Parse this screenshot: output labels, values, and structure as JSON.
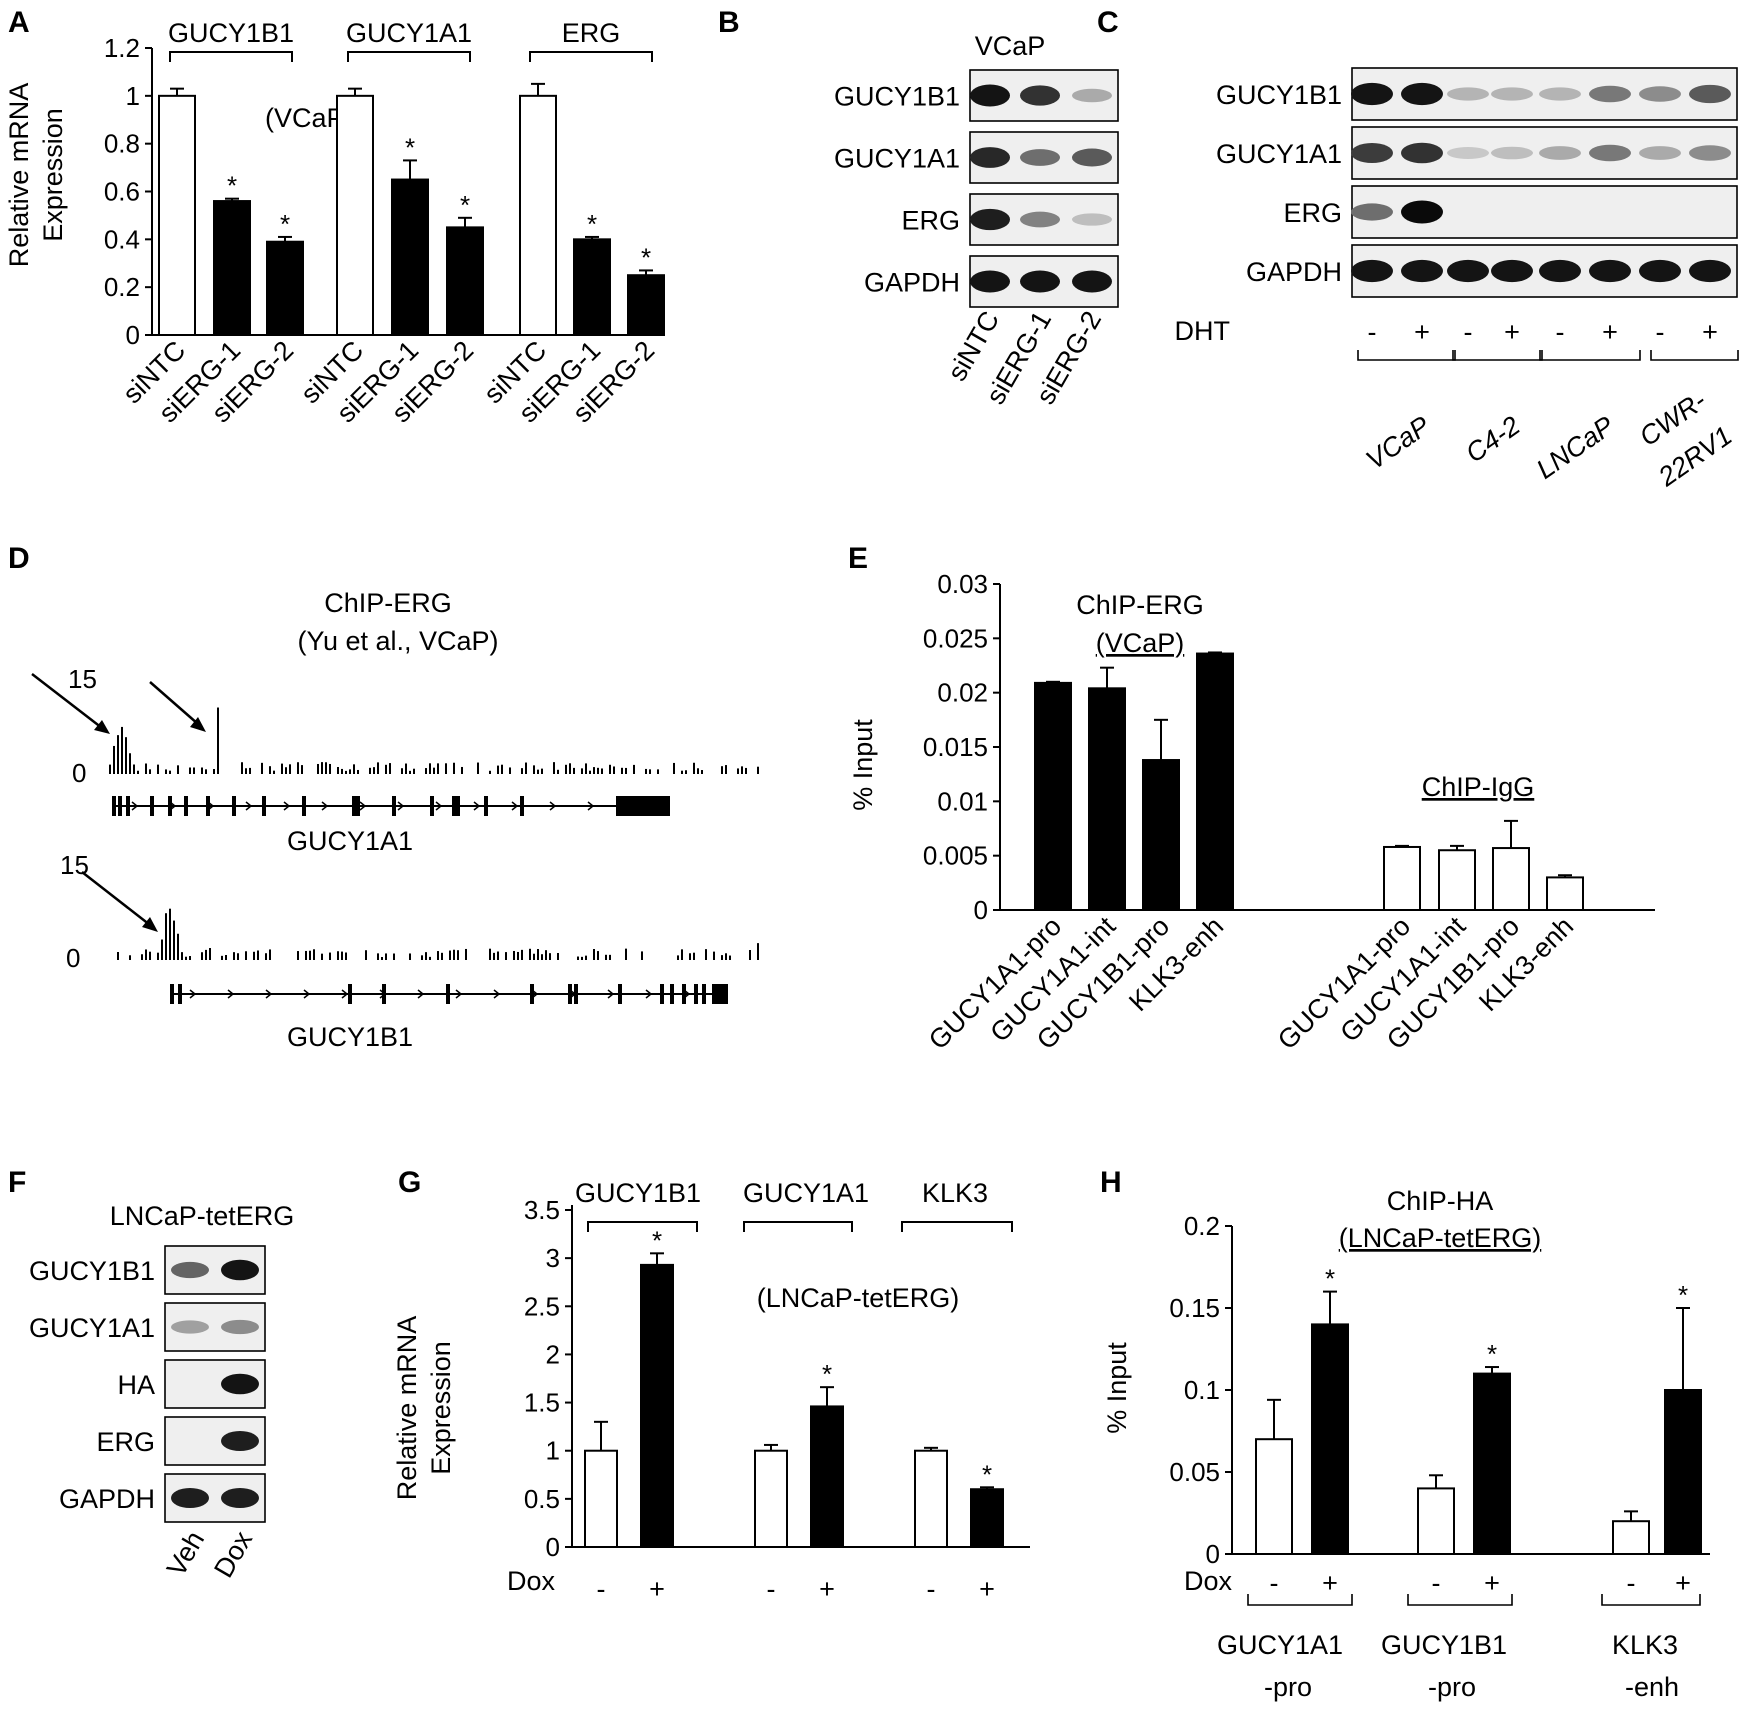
{
  "panels": {
    "A": {
      "letter": "A",
      "cell_note": "(VCaP)",
      "ylabel": [
        "Relative mRNA",
        "Expression"
      ],
      "yticks": [
        "0",
        "0.2",
        "0.4",
        "0.6",
        "0.8",
        "1",
        "1.2"
      ],
      "groups": [
        "GUCY1B1",
        "GUCY1A1",
        "ERG"
      ],
      "xlabels": [
        "siNTC",
        "siERG-1",
        "siERG-2"
      ]
    },
    "B": {
      "letter": "B",
      "cell": "VCaP",
      "rows": [
        "GUCY1B1",
        "GUCY1A1",
        "ERG",
        "GAPDH"
      ],
      "lanes": [
        "siNTC",
        "siERG-1",
        "siERG-2"
      ]
    },
    "C": {
      "letter": "C",
      "rows": [
        "GUCY1B1",
        "GUCY1A1",
        "ERG",
        "GAPDH"
      ],
      "treatment": "DHT",
      "signs": [
        "-",
        "+",
        "-",
        "+",
        "-",
        "+",
        "-",
        "+"
      ],
      "cells": [
        "VCaP",
        "C4-2",
        "LNCaP",
        "CWR-",
        "22RV1"
      ]
    },
    "D": {
      "letter": "D",
      "title": [
        "ChIP-ERG",
        "(Yu et al., VCaP)"
      ],
      "tracks": [
        {
          "gene": "GUCY1A1",
          "ymax": "15",
          "ymin": "0"
        },
        {
          "gene": "GUCY1B1",
          "ymax": "15",
          "ymin": "0"
        }
      ]
    },
    "E": {
      "letter": "E",
      "ylabel": "% Input",
      "yticks": [
        "0",
        "0.005",
        "0.01",
        "0.015",
        "0.02",
        "0.025",
        "0.03"
      ],
      "label_erg": "ChIP-ERG",
      "label_erg_cell": "(VCaP)",
      "label_igg": "ChIP-IgG",
      "xlabels": [
        "GUCY1A1-pro",
        "GUCY1A1-int",
        "GUCY1B1-pro",
        "KLK3-enh",
        "GUCY1A1-pro",
        "GUCY1A1-int",
        "GUCY1B1-pro",
        "KLK3-enh"
      ]
    },
    "F": {
      "letter": "F",
      "cell": "LNCaP-tetERG",
      "rows": [
        "GUCY1B1",
        "GUCY1A1",
        "HA",
        "ERG",
        "GAPDH"
      ],
      "lanes": [
        "Veh",
        "Dox"
      ]
    },
    "G": {
      "letter": "G",
      "cell_note": "(LNCaP-tetERG)",
      "ylabel": [
        "Relative mRNA",
        "Expression"
      ],
      "yticks": [
        "0",
        "0.5",
        "1",
        "1.5",
        "2",
        "2.5",
        "3",
        "3.5"
      ],
      "groups": [
        "GUCY1B1",
        "GUCY1A1",
        "KLK3"
      ],
      "treatment": "Dox",
      "signs": [
        "-",
        "+",
        "-",
        "+",
        "-",
        "+"
      ]
    },
    "H": {
      "letter": "H",
      "title": "ChIP-HA",
      "title_cell": "(LNCaP-tetERG)",
      "ylabel": "% Input",
      "yticks": [
        "0",
        "0.05",
        "0.1",
        "0.15",
        "0.2"
      ],
      "treatment": "Dox",
      "signs": [
        "-",
        "+",
        "-",
        "+",
        "-",
        "+"
      ],
      "groups": [
        [
          "GUCY1A1",
          "-pro"
        ],
        [
          "GUCY1B1",
          "-pro"
        ],
        [
          "KLK3",
          "-enh"
        ]
      ]
    }
  },
  "significance_mark": "*",
  "chart_data": [
    {
      "panel": "A",
      "type": "bar",
      "categories": [
        "GUCY1B1 siNTC",
        "GUCY1B1 siERG-1",
        "GUCY1B1 siERG-2",
        "GUCY1A1 siNTC",
        "GUCY1A1 siERG-1",
        "GUCY1A1 siERG-2",
        "ERG siNTC",
        "ERG siERG-1",
        "ERG siERG-2"
      ],
      "values": [
        1.0,
        0.56,
        0.39,
        1.0,
        0.65,
        0.45,
        1.0,
        0.4,
        0.25
      ],
      "errors": [
        0.03,
        0.01,
        0.02,
        0.03,
        0.08,
        0.04,
        0.05,
        0.01,
        0.02
      ],
      "fills": [
        "white",
        "black",
        "black",
        "white",
        "black",
        "black",
        "white",
        "black",
        "black"
      ],
      "significant": [
        false,
        true,
        true,
        false,
        true,
        true,
        false,
        true,
        true
      ],
      "ylim": [
        0,
        1.2
      ]
    },
    {
      "panel": "E",
      "type": "bar",
      "categories": [
        "GUCY1A1-pro",
        "GUCY1A1-int",
        "GUCY1B1-pro",
        "KLK3-enh",
        "GUCY1A1-pro",
        "GUCY1A1-int",
        "GUCY1B1-pro",
        "KLK3-enh"
      ],
      "values": [
        0.0209,
        0.0204,
        0.0138,
        0.0236,
        0.0058,
        0.0055,
        0.0057,
        0.003
      ],
      "errors": [
        0.0001,
        0.0019,
        0.0037,
        0.0001,
        0.0001,
        0.0004,
        0.0025,
        0.0002
      ],
      "fills": [
        "black",
        "black",
        "black",
        "black",
        "white",
        "white",
        "white",
        "white"
      ],
      "ylim": [
        0,
        0.03
      ]
    },
    {
      "panel": "G",
      "type": "bar",
      "categories": [
        "GUCY1B1 -",
        "GUCY1B1 +",
        "GUCY1A1 -",
        "GUCY1A1 +",
        "KLK3 -",
        "KLK3 +"
      ],
      "values": [
        1.0,
        2.93,
        1.0,
        1.46,
        1.0,
        0.6
      ],
      "errors": [
        0.3,
        0.12,
        0.06,
        0.2,
        0.03,
        0.02
      ],
      "fills": [
        "white",
        "black",
        "white",
        "black",
        "white",
        "black"
      ],
      "significant": [
        false,
        true,
        false,
        true,
        false,
        true
      ],
      "ylim": [
        0,
        3.5
      ]
    },
    {
      "panel": "H",
      "type": "bar",
      "categories": [
        "GUCY1A1-pro -",
        "GUCY1A1-pro +",
        "GUCY1B1-pro -",
        "GUCY1B1-pro +",
        "KLK3-enh -",
        "KLK3-enh +"
      ],
      "values": [
        0.07,
        0.14,
        0.04,
        0.11,
        0.02,
        0.1
      ],
      "errors": [
        0.024,
        0.02,
        0.008,
        0.004,
        0.006,
        0.05
      ],
      "fills": [
        "white",
        "black",
        "white",
        "black",
        "white",
        "black"
      ],
      "significant": [
        false,
        true,
        false,
        true,
        false,
        true
      ],
      "ylim": [
        0,
        0.2
      ]
    }
  ]
}
